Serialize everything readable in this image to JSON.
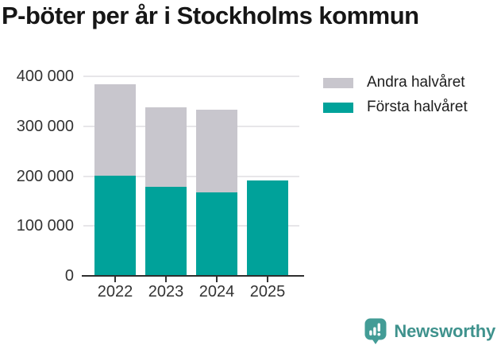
{
  "title": "P-böter per år i Stockholms kommun",
  "chart_data": {
    "type": "bar",
    "stacked": true,
    "title": "P-böter per år i Stockholms kommun",
    "categories": [
      "2022",
      "2023",
      "2024",
      "2025"
    ],
    "series": [
      {
        "name": "Första halvåret",
        "color": "#00a29a",
        "values": [
          200000,
          178000,
          168000,
          191000
        ]
      },
      {
        "name": "Andra halvåret",
        "color": "#c8c6cd",
        "values": [
          183000,
          160000,
          166000,
          0
        ]
      }
    ],
    "xlabel": "",
    "ylabel": "",
    "ylim": [
      0,
      400000
    ],
    "ytick_step": 100000,
    "ytick_labels": [
      "0",
      "100 000",
      "200 000",
      "300 000",
      "400 000"
    ],
    "grid": true,
    "gridline_color": "#e7e6e9",
    "legend_position": "top-right"
  },
  "legend": {
    "items": [
      {
        "label": "Andra halvåret",
        "color": "#c8c6cd"
      },
      {
        "label": "Första halvåret",
        "color": "#00a29a"
      }
    ]
  },
  "branding": {
    "logo_text": "Newsworthy",
    "logo_color": "#3f928d",
    "logo_icon": "bar-chart-pin-icon",
    "logo_icon_color": "#439c96"
  }
}
